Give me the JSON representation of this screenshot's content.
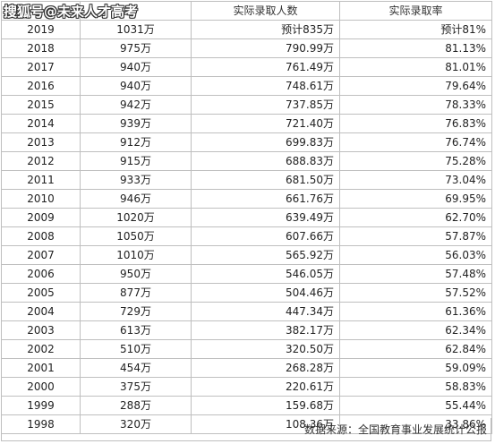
{
  "watermark": "搜狐号@未来人才高考",
  "columns": {
    "year": "",
    "registrants": "",
    "admitted": "实际录取人数",
    "rate": "实际录取率"
  },
  "rows": [
    {
      "year": "2019",
      "reg": "1031万",
      "adm": "预计835万",
      "rate": "预计81%"
    },
    {
      "year": "2018",
      "reg": "975万",
      "adm": "790.99万",
      "rate": "81.13%"
    },
    {
      "year": "2017",
      "reg": "940万",
      "adm": "761.49万",
      "rate": "81.01%"
    },
    {
      "year": "2016",
      "reg": "940万",
      "adm": "748.61万",
      "rate": "79.64%"
    },
    {
      "year": "2015",
      "reg": "942万",
      "adm": "737.85万",
      "rate": "78.33%"
    },
    {
      "year": "2014",
      "reg": "939万",
      "adm": "721.40万",
      "rate": "76.83%"
    },
    {
      "year": "2013",
      "reg": "912万",
      "adm": "699.83万",
      "rate": "76.74%"
    },
    {
      "year": "2012",
      "reg": "915万",
      "adm": "688.83万",
      "rate": "75.28%"
    },
    {
      "year": "2011",
      "reg": "933万",
      "adm": "681.50万",
      "rate": "73.04%"
    },
    {
      "year": "2010",
      "reg": "946万",
      "adm": "661.76万",
      "rate": "69.95%"
    },
    {
      "year": "2009",
      "reg": "1020万",
      "adm": "639.49万",
      "rate": "62.70%"
    },
    {
      "year": "2008",
      "reg": "1050万",
      "adm": "607.66万",
      "rate": "57.87%"
    },
    {
      "year": "2007",
      "reg": "1010万",
      "adm": "565.92万",
      "rate": "56.03%"
    },
    {
      "year": "2006",
      "reg": "950万",
      "adm": "546.05万",
      "rate": "57.48%"
    },
    {
      "year": "2005",
      "reg": "877万",
      "adm": "504.46万",
      "rate": "57.52%"
    },
    {
      "year": "2004",
      "reg": "729万",
      "adm": "447.34万",
      "rate": "61.36%"
    },
    {
      "year": "2003",
      "reg": "613万",
      "adm": "382.17万",
      "rate": "62.34%"
    },
    {
      "year": "2002",
      "reg": "510万",
      "adm": "320.50万",
      "rate": "62.84%"
    },
    {
      "year": "2001",
      "reg": "454万",
      "adm": "268.28万",
      "rate": "59.09%"
    },
    {
      "year": "2000",
      "reg": "375万",
      "adm": "220.61万",
      "rate": "58.83%"
    },
    {
      "year": "1999",
      "reg": "288万",
      "adm": "159.68万",
      "rate": "55.44%"
    },
    {
      "year": "1998",
      "reg": "320万",
      "adm": "108.36万",
      "rate": "33.86%"
    }
  ],
  "source": "数据来源：全国教育事业发展统计公报"
}
